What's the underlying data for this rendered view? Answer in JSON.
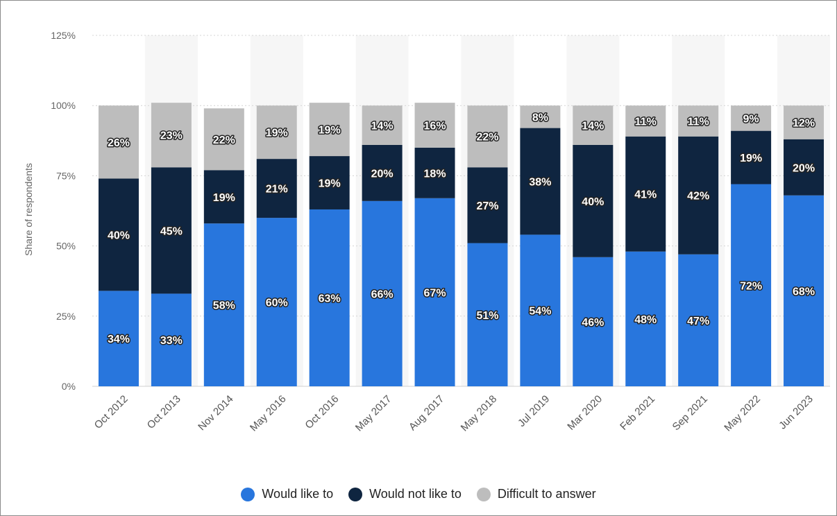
{
  "chart_data": {
    "type": "bar",
    "stacked": true,
    "categories": [
      "Oct 2012",
      "Oct 2013",
      "Nov 2014",
      "May 2016",
      "Oct 2016",
      "May 2017",
      "Aug 2017",
      "May 2018",
      "Jul 2019",
      "Mar 2020",
      "Feb 2021",
      "Sep 2021",
      "May 2022",
      "Jun 2023"
    ],
    "series": [
      {
        "name": "Would like to",
        "color": "#2876dd",
        "values": [
          34,
          33,
          58,
          60,
          63,
          66,
          67,
          51,
          54,
          46,
          48,
          47,
          72,
          68
        ]
      },
      {
        "name": "Would not like to",
        "color": "#0f2540",
        "values": [
          40,
          45,
          19,
          21,
          19,
          20,
          18,
          27,
          38,
          40,
          41,
          42,
          19,
          20
        ]
      },
      {
        "name": "Difficult to answer",
        "color": "#bdbdbd",
        "values": [
          26,
          23,
          22,
          19,
          19,
          14,
          16,
          22,
          8,
          14,
          11,
          11,
          9,
          12
        ]
      }
    ],
    "ylabel": "Share of respondents",
    "xlabel": "",
    "ylim": [
      0,
      125
    ],
    "yticks": [
      0,
      25,
      50,
      75,
      100,
      125
    ],
    "ytick_labels": [
      "0%",
      "25%",
      "50%",
      "75%",
      "100%",
      "125%"
    ],
    "value_suffix": "%",
    "grid": true,
    "legend_position": "bottom"
  }
}
